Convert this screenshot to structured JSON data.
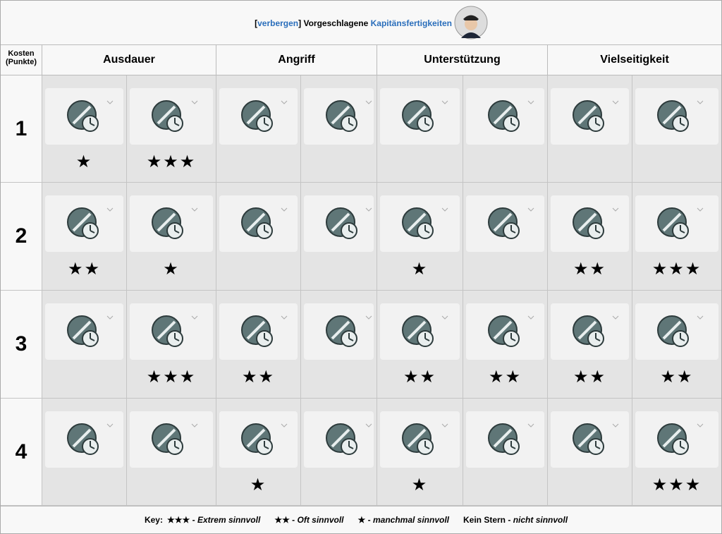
{
  "header": {
    "open": "[",
    "toggle": "verbergen",
    "close": "]",
    "text": "Vorgeschlagene",
    "link": "Kapitänsfertigkeiten"
  },
  "cost_header": [
    "Kosten",
    "(Punkte)"
  ],
  "groups": [
    "Ausdauer",
    "Angriff",
    "Unterstützung",
    "Vielseitigkeit"
  ],
  "rows": [
    {
      "cost": "1",
      "ratings": [
        "★",
        "★★★",
        null,
        null,
        null,
        null,
        null,
        null
      ]
    },
    {
      "cost": "2",
      "ratings": [
        "★★",
        "★",
        null,
        null,
        "★",
        null,
        "★★",
        "★★★"
      ]
    },
    {
      "cost": "3",
      "ratings": [
        null,
        "★★★",
        "★★",
        null,
        "★★",
        "★★",
        "★★",
        "★★"
      ]
    },
    {
      "cost": "4",
      "ratings": [
        null,
        null,
        "★",
        null,
        "★",
        null,
        null,
        "★★★"
      ]
    }
  ],
  "key": {
    "label": "Key:",
    "separator": "-",
    "items": [
      {
        "symbol": "★★★",
        "text": "Extrem sinnvoll"
      },
      {
        "symbol": "★★",
        "text": "Oft sinnvoll"
      },
      {
        "symbol": "★",
        "text": "manchmal sinnvoll"
      },
      {
        "symbol": "Kein Stern",
        "text": "nicht sinnvoll"
      }
    ]
  }
}
